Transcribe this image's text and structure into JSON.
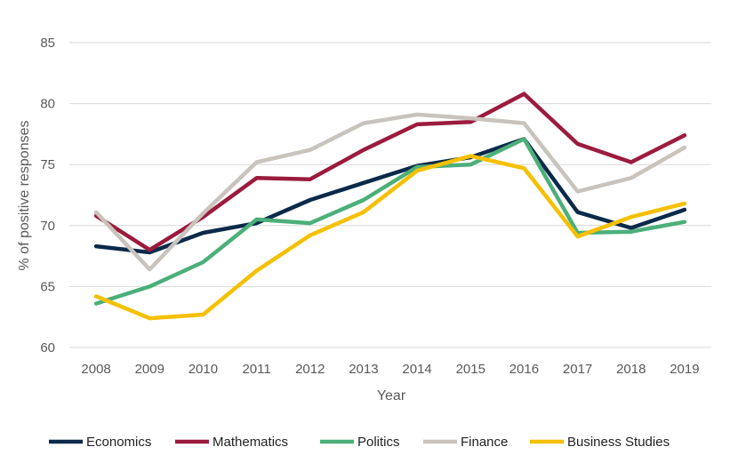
{
  "chart_data": {
    "type": "line",
    "title": "",
    "xlabel": "Year",
    "ylabel": "% of positive responses",
    "ylim": [
      60,
      85
    ],
    "yticks": [
      60,
      65,
      70,
      75,
      80,
      85
    ],
    "grid": true,
    "legend_position": "bottom",
    "categories": [
      "2008",
      "2009",
      "2010",
      "2011",
      "2012",
      "2013",
      "2014",
      "2015",
      "2016",
      "2017",
      "2018",
      "2019"
    ],
    "series": [
      {
        "name": "Economics",
        "color": "#0b2a4a",
        "values": [
          68.3,
          67.8,
          69.4,
          70.2,
          72.1,
          73.5,
          74.9,
          75.6,
          77.1,
          71.1,
          69.8,
          71.3
        ]
      },
      {
        "name": "Mathematics",
        "color": "#9b1b3e",
        "values": [
          70.8,
          68.0,
          70.7,
          73.9,
          73.8,
          76.2,
          78.3,
          78.5,
          80.8,
          76.7,
          75.2,
          77.4
        ]
      },
      {
        "name": "Politics",
        "color": "#4caf7a",
        "values": [
          63.6,
          65.0,
          67.0,
          70.5,
          70.2,
          72.1,
          74.8,
          75.0,
          77.1,
          69.4,
          69.5,
          70.3
        ]
      },
      {
        "name": "Finance",
        "color": "#c8c3bd",
        "values": [
          71.1,
          66.4,
          71.0,
          75.2,
          76.2,
          78.4,
          79.1,
          78.8,
          78.4,
          72.8,
          73.9,
          76.4
        ]
      },
      {
        "name": "Business Studies",
        "color": "#f5c000",
        "values": [
          64.2,
          62.4,
          62.7,
          66.3,
          69.2,
          71.1,
          74.5,
          75.7,
          74.7,
          69.1,
          70.7,
          71.8
        ]
      }
    ]
  }
}
